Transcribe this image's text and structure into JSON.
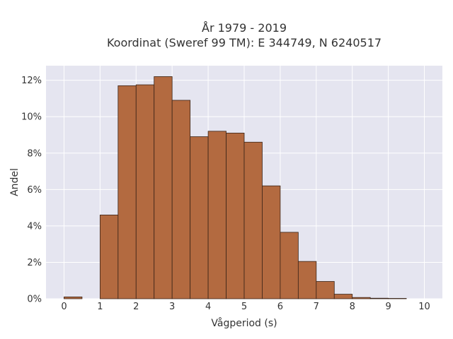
{
  "chart_data": {
    "type": "bar",
    "title": [
      "År 1979 - 2019",
      "Koordinat (Sweref 99 TM): E 344749, N 6240517"
    ],
    "xlabel": "Vågperiod (s)",
    "ylabel": "Andel",
    "bin_width": 0.5,
    "bins": [
      {
        "x0": 0.0,
        "value": 0.1
      },
      {
        "x0": 0.5,
        "value": 0.0
      },
      {
        "x0": 1.0,
        "value": 4.6
      },
      {
        "x0": 1.5,
        "value": 11.7
      },
      {
        "x0": 2.0,
        "value": 11.75
      },
      {
        "x0": 2.5,
        "value": 12.2
      },
      {
        "x0": 3.0,
        "value": 10.9
      },
      {
        "x0": 3.5,
        "value": 8.9
      },
      {
        "x0": 4.0,
        "value": 9.2
      },
      {
        "x0": 4.5,
        "value": 9.1
      },
      {
        "x0": 5.0,
        "value": 8.6
      },
      {
        "x0": 5.5,
        "value": 6.2
      },
      {
        "x0": 6.0,
        "value": 3.65
      },
      {
        "x0": 6.5,
        "value": 2.05
      },
      {
        "x0": 7.0,
        "value": 0.95
      },
      {
        "x0": 7.5,
        "value": 0.25
      },
      {
        "x0": 8.0,
        "value": 0.07
      },
      {
        "x0": 8.5,
        "value": 0.03
      },
      {
        "x0": 9.0,
        "value": 0.02
      }
    ],
    "xlim": [
      -0.5,
      10.5
    ],
    "ylim": [
      0,
      12.8
    ],
    "xticks": [
      0,
      1,
      2,
      3,
      4,
      5,
      6,
      7,
      8,
      9,
      10
    ],
    "yticks": [
      0,
      2,
      4,
      6,
      8,
      10,
      12
    ],
    "yticklabels": [
      "0%",
      "2%",
      "4%",
      "6%",
      "8%",
      "10%",
      "12%"
    ],
    "grid": true,
    "colors": {
      "plot_bg": "#e5e5f0",
      "grid": "#ffffff",
      "bar_fill": "#b36a40",
      "bar_edge": "#3a2418"
    }
  }
}
